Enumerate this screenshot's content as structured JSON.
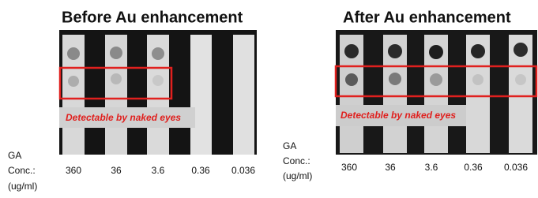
{
  "panels": [
    {
      "title": "Before Au enhancement",
      "annotation": "Detectable by naked eyes",
      "axis_label": [
        "GA",
        "Conc.:",
        "(ug/ml)"
      ],
      "concentrations": [
        "360",
        "36",
        "3.6",
        "0.36",
        "0.036"
      ]
    },
    {
      "title": "After Au enhancement",
      "annotation": "Detectable by naked eyes",
      "axis_label": [
        "GA",
        "Conc.:",
        "(ug/ml)"
      ],
      "concentrations": [
        "360",
        "36",
        "3.6",
        "0.36",
        "0.036"
      ]
    }
  ]
}
